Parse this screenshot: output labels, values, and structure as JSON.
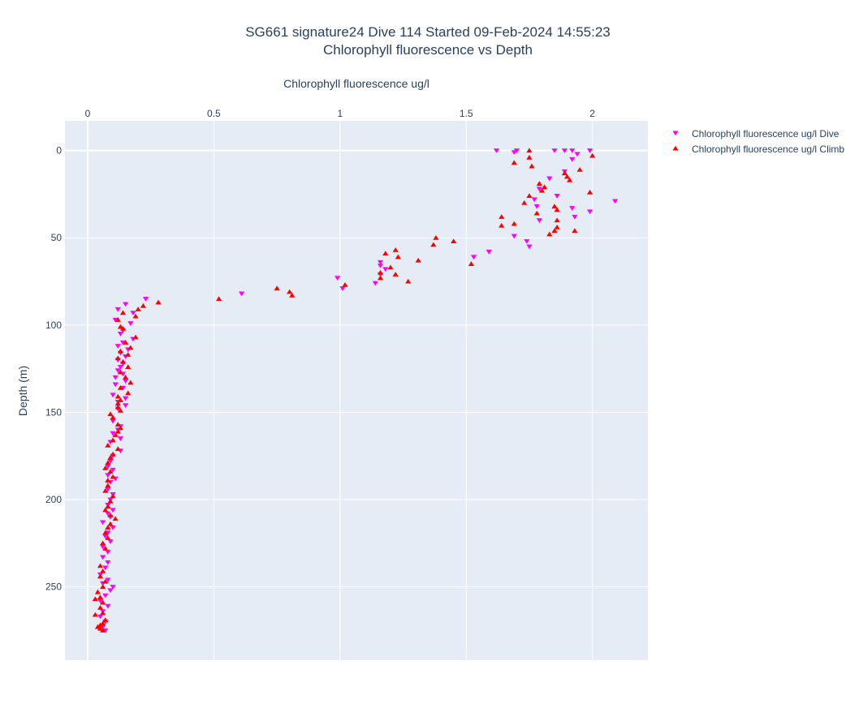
{
  "chart_data": {
    "type": "scatter",
    "title": "SG661 signature24 Dive 114 Started 09-Feb-2024 14:55:23",
    "subtitle": "Chlorophyll fluorescence vs Depth",
    "xlabel": "Chlorophyll fluorescence ug/l",
    "ylabel": "Depth (m)",
    "x_axis_position": "top",
    "y_axis_reversed": true,
    "xlim": [
      -0.09,
      2.22
    ],
    "ylim": [
      -17,
      292
    ],
    "x_ticks": [
      0,
      0.5,
      1,
      1.5,
      2
    ],
    "x_tick_labels": [
      "0",
      "0.5",
      "1",
      "1.5",
      "2"
    ],
    "y_ticks": [
      0,
      50,
      100,
      150,
      200,
      250
    ],
    "y_tick_labels": [
      "0",
      "50",
      "100",
      "150",
      "200",
      "250"
    ],
    "grid": true,
    "legend_position": "top-right",
    "colors": {
      "plot_bg": "#e5ecf6",
      "dive": "#ff00ff",
      "climb": "#ff0000"
    },
    "series": [
      {
        "name": "Chlorophyll fluorescence ug/l Dive",
        "marker": "triangle-down",
        "color": "#ff00ff",
        "points": [
          [
            1.62,
            0
          ],
          [
            1.7,
            0
          ],
          [
            1.69,
            1
          ],
          [
            1.85,
            0
          ],
          [
            1.89,
            0
          ],
          [
            1.92,
            0
          ],
          [
            1.94,
            2
          ],
          [
            1.99,
            0
          ],
          [
            1.92,
            5
          ],
          [
            1.89,
            12
          ],
          [
            1.83,
            16
          ],
          [
            1.79,
            22
          ],
          [
            1.86,
            26
          ],
          [
            1.92,
            33
          ],
          [
            1.99,
            35
          ],
          [
            2.09,
            29
          ],
          [
            1.78,
            32
          ],
          [
            1.93,
            38
          ],
          [
            1.79,
            40
          ],
          [
            1.77,
            28
          ],
          [
            1.69,
            49
          ],
          [
            1.74,
            52
          ],
          [
            1.75,
            55
          ],
          [
            1.59,
            58
          ],
          [
            1.53,
            61
          ],
          [
            1.16,
            64
          ],
          [
            1.16,
            66
          ],
          [
            1.18,
            68
          ],
          [
            1.16,
            71
          ],
          [
            0.99,
            73
          ],
          [
            1.14,
            76
          ],
          [
            1.01,
            79
          ],
          [
            0.61,
            82
          ],
          [
            0.23,
            85
          ],
          [
            0.15,
            88
          ],
          [
            0.12,
            91
          ],
          [
            0.18,
            93
          ],
          [
            0.11,
            97
          ],
          [
            0.17,
            99
          ],
          [
            0.14,
            103
          ],
          [
            0.13,
            105
          ],
          [
            0.18,
            108
          ],
          [
            0.14,
            110
          ],
          [
            0.12,
            112
          ],
          [
            0.16,
            114
          ],
          [
            0.13,
            116
          ],
          [
            0.15,
            118
          ],
          [
            0.12,
            120
          ],
          [
            0.14,
            122
          ],
          [
            0.13,
            124
          ],
          [
            0.12,
            126
          ],
          [
            0.14,
            128
          ],
          [
            0.11,
            130
          ],
          [
            0.15,
            132
          ],
          [
            0.11,
            134
          ],
          [
            0.14,
            136
          ],
          [
            0.1,
            140
          ],
          [
            0.15,
            142
          ],
          [
            0.12,
            144
          ],
          [
            0.15,
            146
          ],
          [
            0.12,
            148
          ],
          [
            0.1,
            155
          ],
          [
            0.13,
            158
          ],
          [
            0.12,
            160
          ],
          [
            0.1,
            162
          ],
          [
            0.13,
            165
          ],
          [
            0.09,
            167
          ],
          [
            0.13,
            172
          ],
          [
            0.1,
            175
          ],
          [
            0.09,
            178
          ],
          [
            0.08,
            181
          ],
          [
            0.1,
            183
          ],
          [
            0.08,
            186
          ],
          [
            0.11,
            188
          ],
          [
            0.09,
            190
          ],
          [
            0.08,
            194
          ],
          [
            0.1,
            197
          ],
          [
            0.09,
            200
          ],
          [
            0.08,
            203
          ],
          [
            0.1,
            206
          ],
          [
            0.08,
            208
          ],
          [
            0.09,
            210
          ],
          [
            0.06,
            213
          ],
          [
            0.1,
            216
          ],
          [
            0.08,
            219
          ],
          [
            0.07,
            221
          ],
          [
            0.09,
            224
          ],
          [
            0.06,
            227
          ],
          [
            0.08,
            230
          ],
          [
            0.06,
            233
          ],
          [
            0.08,
            236
          ],
          [
            0.07,
            239
          ],
          [
            0.05,
            243
          ],
          [
            0.08,
            246
          ],
          [
            0.06,
            248
          ],
          [
            0.1,
            250
          ],
          [
            0.09,
            252
          ],
          [
            0.07,
            255
          ],
          [
            0.05,
            258
          ],
          [
            0.08,
            261
          ],
          [
            0.06,
            264
          ],
          [
            0.05,
            267
          ],
          [
            0.07,
            270
          ],
          [
            0.06,
            273
          ],
          [
            0.07,
            275
          ]
        ]
      },
      {
        "name": "Chlorophyll fluorescence ug/l Climb",
        "marker": "triangle-up",
        "color": "#ff0000",
        "points": [
          [
            1.75,
            0
          ],
          [
            2.0,
            3
          ],
          [
            1.75,
            4
          ],
          [
            1.69,
            7
          ],
          [
            1.76,
            9
          ],
          [
            1.95,
            11
          ],
          [
            1.89,
            13
          ],
          [
            1.9,
            15
          ],
          [
            1.91,
            17
          ],
          [
            1.79,
            19
          ],
          [
            1.81,
            21
          ],
          [
            1.8,
            23
          ],
          [
            1.99,
            24
          ],
          [
            1.75,
            26
          ],
          [
            1.73,
            30
          ],
          [
            1.85,
            32
          ],
          [
            1.86,
            34
          ],
          [
            1.78,
            36
          ],
          [
            1.64,
            38
          ],
          [
            1.86,
            40
          ],
          [
            1.69,
            42
          ],
          [
            1.64,
            43
          ],
          [
            1.86,
            44
          ],
          [
            1.85,
            46
          ],
          [
            1.93,
            46
          ],
          [
            1.83,
            48
          ],
          [
            1.38,
            50
          ],
          [
            1.45,
            52
          ],
          [
            1.37,
            54
          ],
          [
            1.22,
            57
          ],
          [
            1.18,
            59
          ],
          [
            1.23,
            61
          ],
          [
            1.31,
            63
          ],
          [
            1.52,
            65
          ],
          [
            1.2,
            67
          ],
          [
            1.16,
            70
          ],
          [
            1.22,
            71
          ],
          [
            1.16,
            73
          ],
          [
            1.27,
            75
          ],
          [
            1.02,
            77
          ],
          [
            0.75,
            79
          ],
          [
            0.8,
            81
          ],
          [
            0.81,
            83
          ],
          [
            0.52,
            85
          ],
          [
            0.28,
            87
          ],
          [
            0.22,
            89
          ],
          [
            0.2,
            91
          ],
          [
            0.14,
            93
          ],
          [
            0.19,
            95
          ],
          [
            0.12,
            97
          ],
          [
            0.13,
            101
          ],
          [
            0.14,
            102
          ],
          [
            0.19,
            107
          ],
          [
            0.15,
            110
          ],
          [
            0.17,
            113
          ],
          [
            0.13,
            115
          ],
          [
            0.16,
            117
          ],
          [
            0.12,
            119
          ],
          [
            0.14,
            121
          ],
          [
            0.16,
            124
          ],
          [
            0.13,
            127
          ],
          [
            0.15,
            130
          ],
          [
            0.17,
            133
          ],
          [
            0.13,
            136
          ],
          [
            0.16,
            139
          ],
          [
            0.12,
            141
          ],
          [
            0.13,
            143
          ],
          [
            0.12,
            145
          ],
          [
            0.12,
            147
          ],
          [
            0.13,
            149
          ],
          [
            0.09,
            151
          ],
          [
            0.1,
            153
          ],
          [
            0.12,
            157
          ],
          [
            0.13,
            159
          ],
          [
            0.12,
            161
          ],
          [
            0.11,
            163
          ],
          [
            0.1,
            166
          ],
          [
            0.08,
            169
          ],
          [
            0.12,
            171
          ],
          [
            0.1,
            174
          ],
          [
            0.09,
            176
          ],
          [
            0.08,
            179
          ],
          [
            0.07,
            182
          ],
          [
            0.09,
            184
          ],
          [
            0.1,
            187
          ],
          [
            0.08,
            189
          ],
          [
            0.08,
            192
          ],
          [
            0.07,
            195
          ],
          [
            0.1,
            198
          ],
          [
            0.09,
            201
          ],
          [
            0.08,
            204
          ],
          [
            0.07,
            206
          ],
          [
            0.09,
            209
          ],
          [
            0.11,
            211
          ],
          [
            0.09,
            214
          ],
          [
            0.08,
            216
          ],
          [
            0.07,
            219
          ],
          [
            0.08,
            222
          ],
          [
            0.06,
            225
          ],
          [
            0.07,
            228
          ],
          [
            0.05,
            238
          ],
          [
            0.06,
            241
          ],
          [
            0.05,
            244
          ],
          [
            0.07,
            247
          ],
          [
            0.06,
            250
          ],
          [
            0.04,
            253
          ],
          [
            0.05,
            256
          ],
          [
            0.03,
            257
          ],
          [
            0.06,
            259
          ],
          [
            0.05,
            262
          ],
          [
            0.06,
            265
          ],
          [
            0.03,
            266
          ],
          [
            0.07,
            269
          ],
          [
            0.06,
            271
          ],
          [
            0.05,
            272
          ],
          [
            0.04,
            273
          ],
          [
            0.05,
            274
          ],
          [
            0.06,
            275
          ]
        ]
      }
    ]
  }
}
